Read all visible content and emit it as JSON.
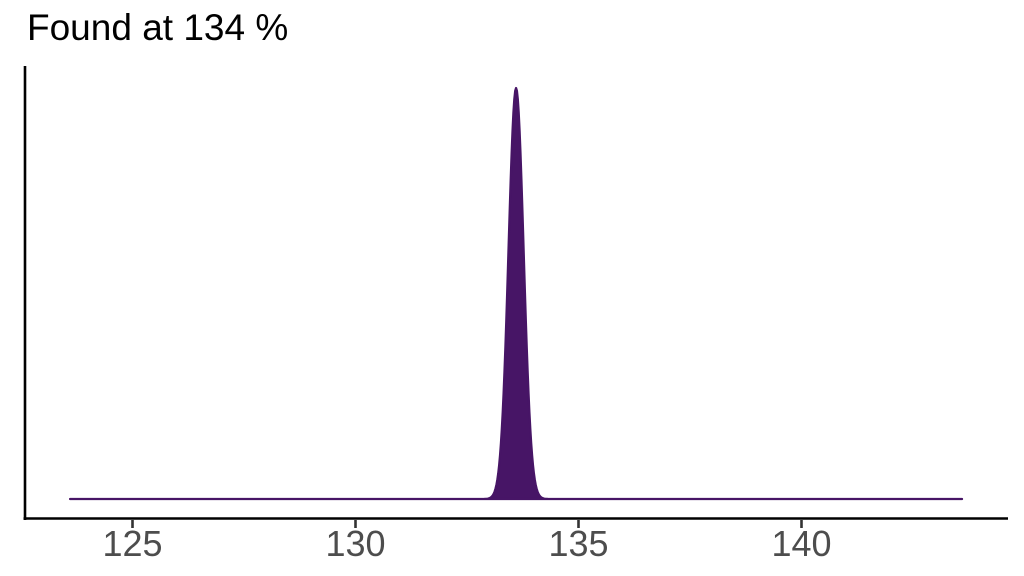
{
  "page": {
    "background": "#ffffff"
  },
  "chart_data": {
    "type": "area",
    "title": "Found at 134 %",
    "subtitle": "",
    "xlabel": "",
    "ylabel": "",
    "x_ticks": [
      "125",
      "130",
      "135",
      "140"
    ],
    "x_tick_values": [
      125,
      130,
      135,
      140
    ],
    "x_range": [
      123.6,
      143.6
    ],
    "y_range": [
      0,
      1
    ],
    "grid": false,
    "legend_position": "none",
    "series": [
      {
        "name": "density",
        "shape": "gaussian-peak",
        "peak_x": 133.6,
        "peak_y": 1.0,
        "sigma": 0.17,
        "baseline_y": 0.0,
        "x_start": 123.6,
        "x_end": 143.6
      }
    ],
    "colors": {
      "fill": "#471566",
      "line": "#471566",
      "axis": "#000000",
      "tick": "#333333",
      "tick_label": "#4d4d4d",
      "title": "#000000"
    }
  }
}
